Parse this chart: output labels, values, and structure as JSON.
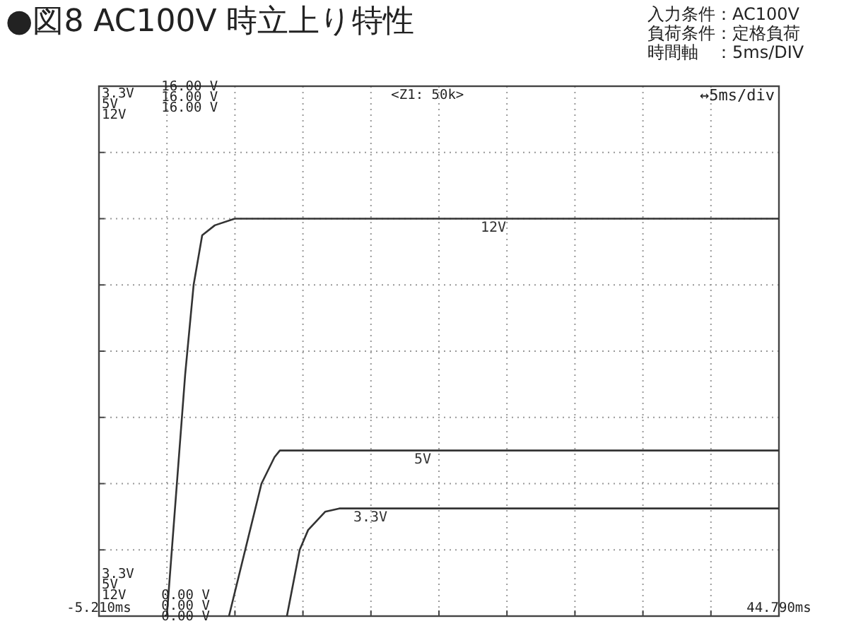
{
  "chart_data": {
    "type": "line",
    "title": "●図8 AC100V 時立上り特性",
    "xlim": [
      -5.21,
      44.79
    ],
    "ylim": [
      0,
      16
    ],
    "xticks": [
      {
        "value": -5.21,
        "label": "-5.210ms"
      },
      {
        "value": -0.21,
        "label": null
      },
      {
        "value": 4.79,
        "label": null
      },
      {
        "value": 9.79,
        "label": null
      },
      {
        "value": 14.79,
        "label": null
      },
      {
        "value": 19.79,
        "label": null
      },
      {
        "value": 24.79,
        "label": null
      },
      {
        "value": 29.79,
        "label": null
      },
      {
        "value": 34.79,
        "label": null
      },
      {
        "value": 39.79,
        "label": null
      },
      {
        "value": 44.79,
        "label": "44.790ms"
      }
    ],
    "yticks": [
      {
        "value": 0,
        "label": "0.00 V"
      },
      {
        "value": 2,
        "label": null
      },
      {
        "value": 4,
        "label": null
      },
      {
        "value": 6,
        "label": null
      },
      {
        "value": 8,
        "label": null
      },
      {
        "value": 10,
        "label": null
      },
      {
        "value": 12,
        "label": null
      },
      {
        "value": 14,
        "label": null
      },
      {
        "value": 16,
        "label": "16.00 V"
      }
    ],
    "grid": true,
    "legend": false,
    "marker": "none",
    "line_style": "solid",
    "series": [
      {
        "name": "12V",
        "color": "#333333",
        "x": [
          -0.22,
          1.13,
          1.75,
          2.38,
          3.31,
          4.77,
          44.79
        ],
        "values": [
          0,
          7.3,
          10,
          11.5,
          11.8,
          12,
          12
        ]
      },
      {
        "name": "5V",
        "color": "#333333",
        "x": [
          4.35,
          6.74,
          7.7,
          8.09,
          44.79
        ],
        "values": [
          0,
          4,
          4.8,
          5,
          5
        ]
      },
      {
        "name": "3.3V",
        "color": "#333333",
        "x": [
          8.61,
          9.55,
          10.17,
          11.42,
          12.46,
          44.79
        ],
        "values": [
          0,
          2,
          2.6,
          3.15,
          3.25,
          3.25
        ]
      }
    ],
    "annotations": [
      "入力条件：AC100V",
      "負荷条件：定格負荷",
      "時間軸　：5ms/DIV",
      "3.3V\n5V\n12V",
      "<Z1: 50k>",
      "↔5ms/div",
      "3.3V\n5V\n12V"
    ]
  }
}
